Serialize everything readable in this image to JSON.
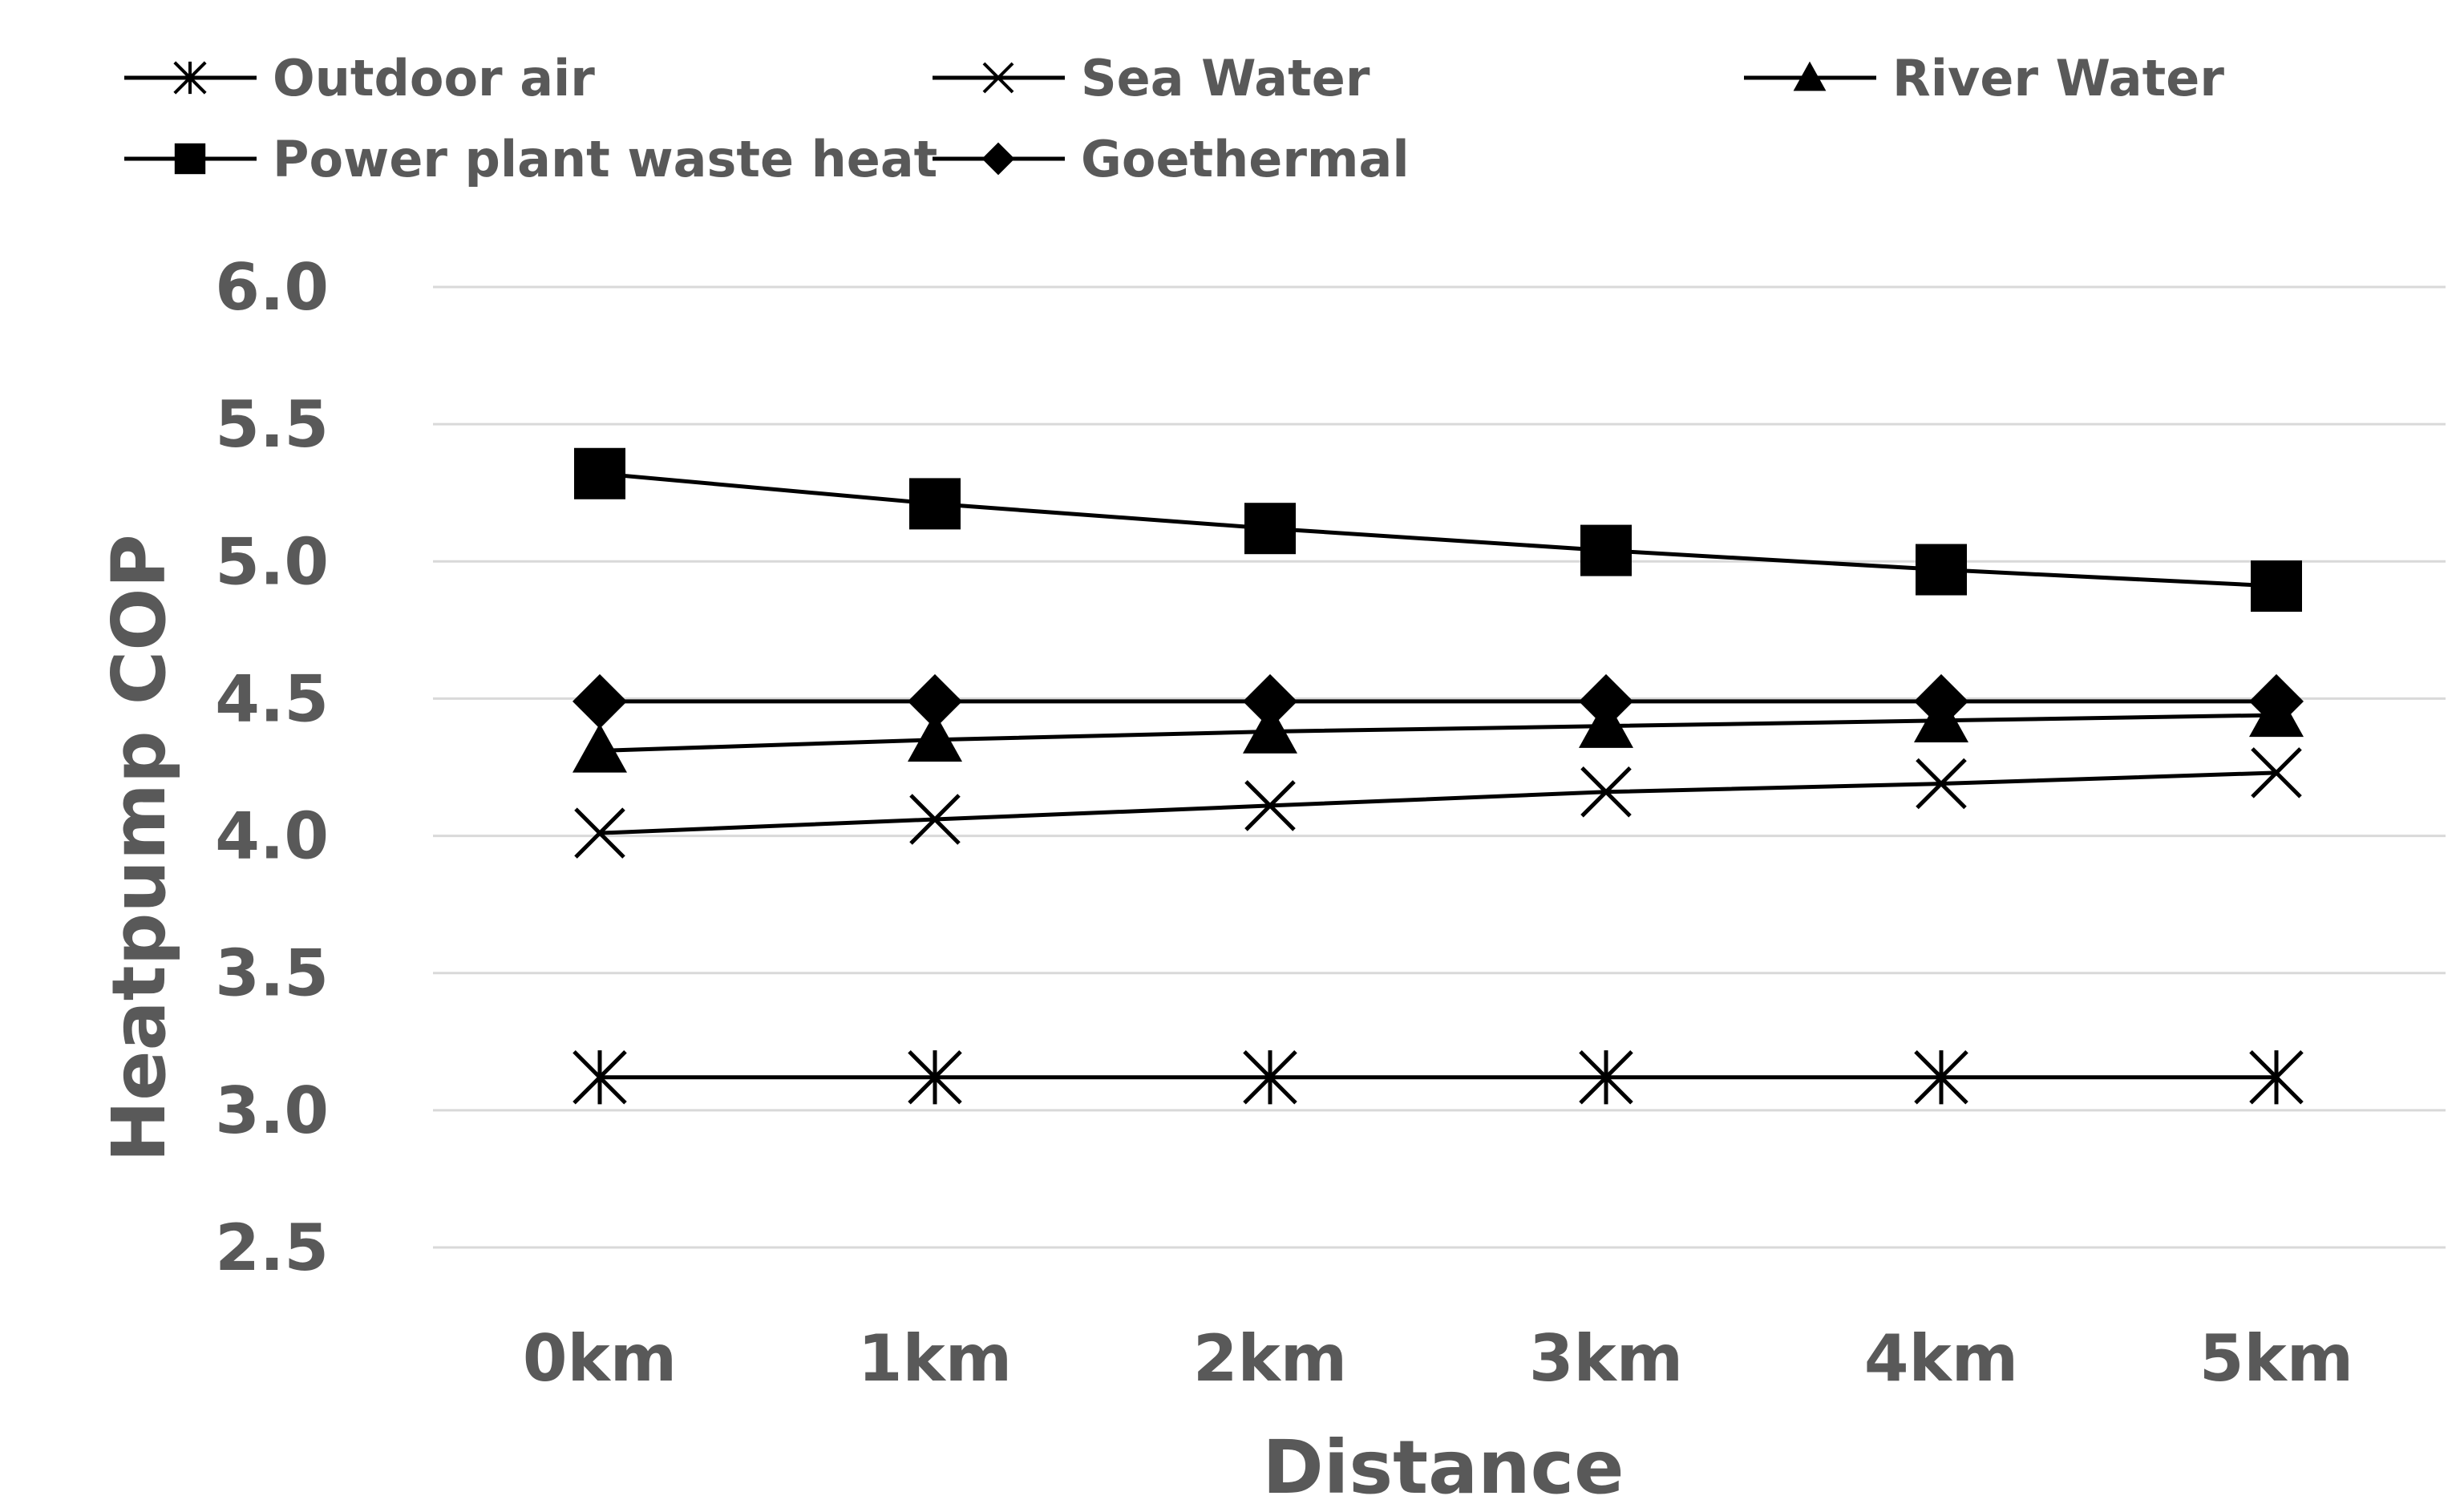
{
  "chart_data": {
    "type": "line",
    "title": "",
    "xlabel": "Distance",
    "ylabel": "Heatpump COP",
    "categories": [
      "0km",
      "1km",
      "2km",
      "3km",
      "4km",
      "5km"
    ],
    "ylim": [
      2.5,
      6.0
    ],
    "yticks": [
      "2.5",
      "3.0",
      "3.5",
      "4.0",
      "4.5",
      "5.0",
      "5.5",
      "6.0"
    ],
    "grid": "horizontal",
    "legend_position": "top",
    "series": [
      {
        "name": "Outdoor air",
        "marker": "asterisk",
        "values": [
          3.12,
          3.12,
          3.12,
          3.12,
          3.12,
          3.12
        ]
      },
      {
        "name": "Sea Water",
        "marker": "x",
        "values": [
          4.01,
          4.06,
          4.11,
          4.16,
          4.19,
          4.23
        ]
      },
      {
        "name": "River Water",
        "marker": "triangle",
        "values": [
          4.31,
          4.35,
          4.38,
          4.4,
          4.42,
          4.44
        ]
      },
      {
        "name": "Power plant waste heat",
        "marker": "square",
        "values": [
          5.32,
          5.21,
          5.12,
          5.04,
          4.97,
          4.91
        ]
      },
      {
        "name": "Goethermal",
        "marker": "diamond",
        "values": [
          4.49,
          4.49,
          4.49,
          4.49,
          4.49,
          4.49
        ]
      }
    ],
    "colors": {
      "line": "#000000",
      "grid": "#d9d9d9",
      "text": "#595959"
    }
  }
}
